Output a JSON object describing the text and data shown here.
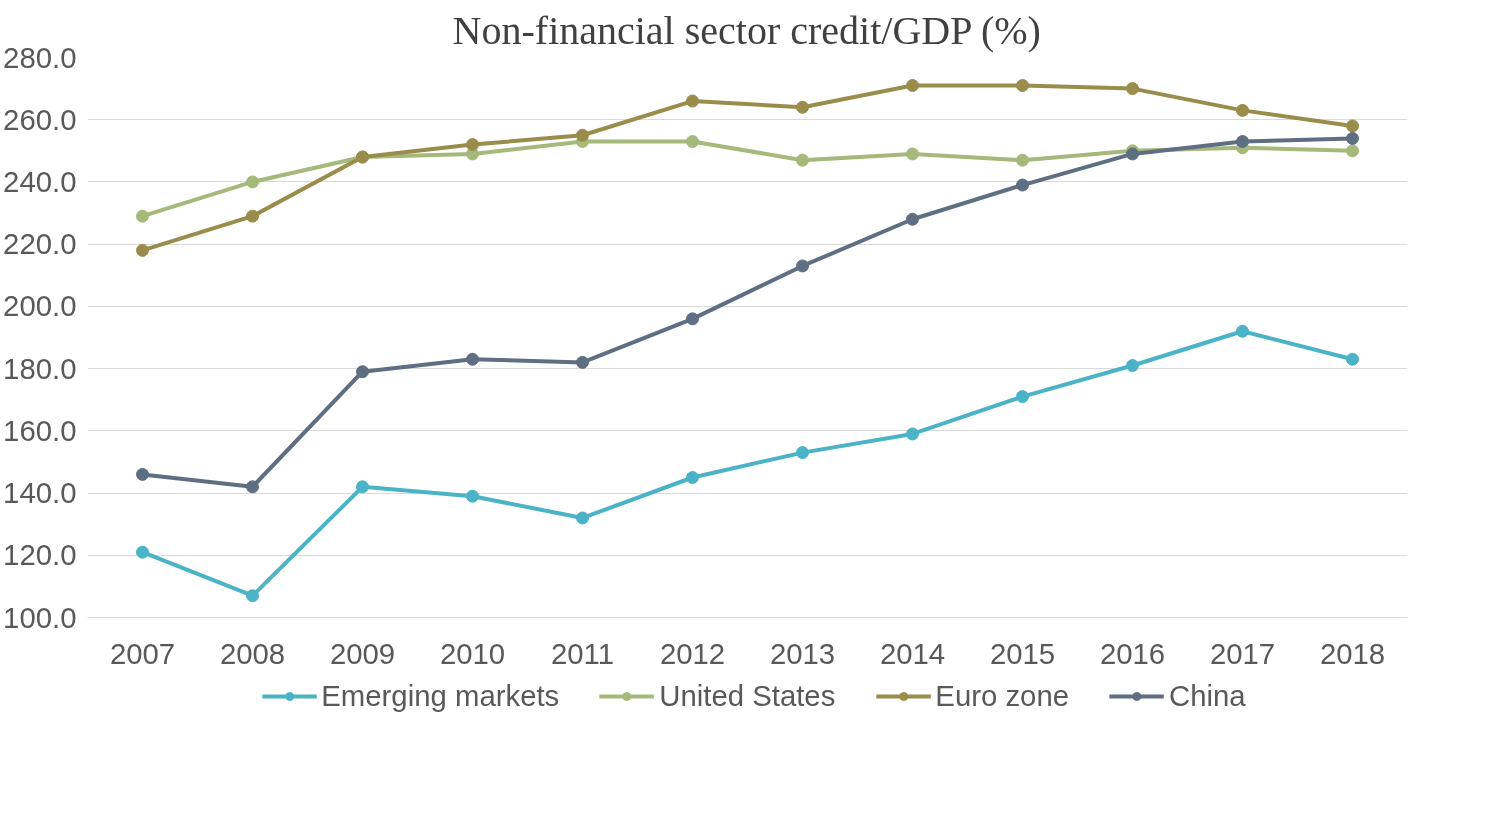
{
  "chart_data": {
    "type": "line",
    "title": "Non-financial sector credit/GDP (%)",
    "categories": [
      "2007",
      "2008",
      "2009",
      "2010",
      "2011",
      "2012",
      "2013",
      "2014",
      "2015",
      "2016",
      "2017",
      "2018"
    ],
    "series": [
      {
        "name": "Emerging markets",
        "color": "#4bb3c8",
        "values": [
          121,
          107,
          142,
          139,
          132,
          145,
          153,
          159,
          171,
          181,
          192,
          183
        ]
      },
      {
        "name": "United States",
        "color": "#a5b97a",
        "values": [
          229,
          240,
          248,
          249,
          253,
          253,
          247,
          249,
          247,
          250,
          251,
          250
        ]
      },
      {
        "name": "Euro zone",
        "color": "#9a8c4b",
        "values": [
          218,
          229,
          248,
          252,
          255,
          266,
          264,
          271,
          271,
          270,
          263,
          258
        ]
      },
      {
        "name": "China",
        "color": "#5f6f83",
        "values": [
          146,
          142,
          179,
          183,
          182,
          196,
          213,
          228,
          239,
          249,
          253,
          254
        ]
      }
    ],
    "ylim": [
      100,
      280
    ],
    "yticks": [
      {
        "value": 100,
        "label": "100.0"
      },
      {
        "value": 120,
        "label": "120.0"
      },
      {
        "value": 140,
        "label": "140.0"
      },
      {
        "value": 160,
        "label": "160.0"
      },
      {
        "value": 180,
        "label": "180.0"
      },
      {
        "value": 200,
        "label": "200.0"
      },
      {
        "value": 220,
        "label": "220.0"
      },
      {
        "value": 240,
        "label": "240.0"
      },
      {
        "value": 260,
        "label": "260.0"
      },
      {
        "value": 280,
        "label": "280.0"
      }
    ],
    "grid": "y",
    "legend": "bottom",
    "marker": "circle",
    "line_style": "solid"
  }
}
